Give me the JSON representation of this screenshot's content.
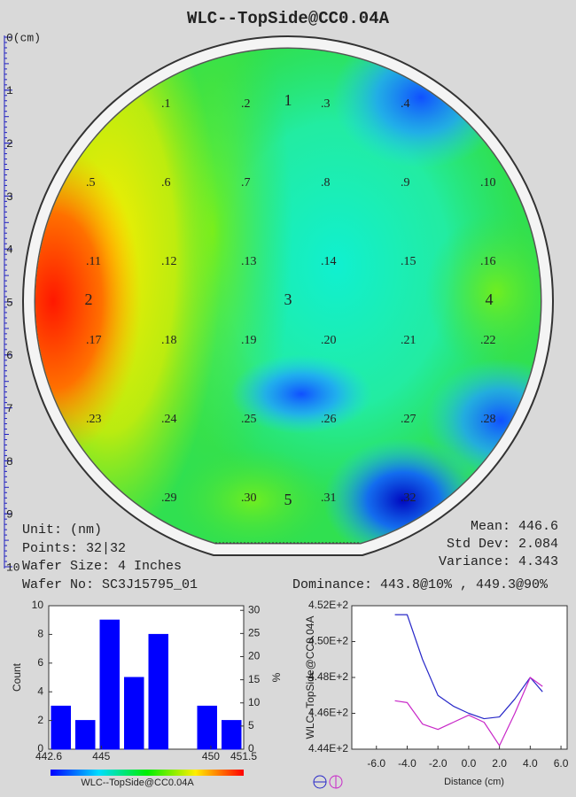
{
  "title": "WLC--TopSide@CC0.04A",
  "ruler": {
    "ylim": [
      0,
      10
    ],
    "yticks": [
      {
        "value": 0,
        "label": "0(cm)"
      },
      1,
      2,
      3,
      4,
      5,
      6,
      7,
      8,
      9,
      10
    ]
  },
  "map": {
    "points": [
      ".1",
      ".2",
      ".3",
      ".4",
      ".5",
      ".6",
      ".7",
      ".8",
      ".9",
      ".10",
      ".11",
      ".12",
      ".13",
      ".14",
      ".15",
      ".16",
      ".17",
      ".18",
      ".19",
      ".20",
      ".21",
      ".22",
      ".23",
      ".24",
      ".25",
      ".26",
      ".27",
      ".28",
      ".29",
      ".30",
      ".31",
      ".32"
    ],
    "zones": [
      "1",
      "2",
      "3",
      "4",
      "5"
    ]
  },
  "info": {
    "unit": "Unit: (nm)",
    "points": "Points: 32|32",
    "wafer_size": "Wafer Size: 4 Inches",
    "wafer_no": "Wafer No: SC3J15795_01",
    "mean": {
      "label": "Mean:",
      "value": 446.6
    },
    "std_dev": {
      "label": "Std Dev:",
      "value": 2.084
    },
    "variance": {
      "label": "Variance:",
      "value": 4.343
    },
    "dominance": "Dominance: 443.8@10% , 449.3@90%"
  },
  "histogram": {
    "type": "histogram",
    "bins": [
      442.6,
      443.7125,
      444.825,
      445.9375,
      447.05,
      448.1625,
      449.275,
      450.3875,
      451.5
    ],
    "values": [
      3,
      2,
      9,
      5,
      8,
      0,
      3,
      2
    ],
    "color": "#0000ff",
    "xlim": [
      442.6,
      451.5
    ],
    "xticks": [
      442.6,
      445,
      450,
      451.5
    ],
    "ylim": [
      0,
      10
    ],
    "yticks": [
      0,
      2,
      4,
      6,
      8,
      10
    ],
    "y_label": "Count",
    "y2lim": [
      0,
      31
    ],
    "y2ticks": [
      0,
      5,
      10,
      15,
      20,
      25,
      30
    ],
    "y2_label": "%",
    "colorbar_label": "WLC--TopSide@CC0.04A"
  },
  "profile": {
    "type": "line",
    "series": [
      {
        "color": "#2828c8",
        "x": [
          -4.8,
          -4.0,
          -3.0,
          -2.0,
          -1.0,
          0.0,
          1.0,
          2.0,
          3.0,
          4.0,
          4.8
        ],
        "values": [
          451.5,
          451.5,
          449.0,
          447.0,
          446.4,
          446.0,
          445.7,
          445.8,
          446.8,
          448.0,
          447.2
        ]
      },
      {
        "color": "#c828c8",
        "x": [
          -4.8,
          -4.0,
          -3.0,
          -2.0,
          -1.0,
          0.0,
          1.0,
          2.0,
          3.0,
          4.0,
          4.8
        ],
        "values": [
          446.7,
          446.6,
          445.4,
          445.1,
          445.5,
          445.9,
          445.5,
          444.2,
          446.0,
          448.0,
          447.5
        ]
      }
    ],
    "xlim": [
      -7.6,
      6.4
    ],
    "xticks": [
      {
        "value": -6,
        "label": "-6.0"
      },
      {
        "value": -4,
        "label": "-4.0"
      },
      {
        "value": -2,
        "label": "-2.0"
      },
      {
        "value": 0,
        "label": "0.0"
      },
      {
        "value": 2,
        "label": "2.0"
      },
      {
        "value": 4,
        "label": "4.0"
      },
      {
        "value": 6,
        "label": "6.0"
      }
    ],
    "ylim": [
      444,
      452
    ],
    "yticks": [
      {
        "value": 444,
        "label": "4.44E+2"
      },
      {
        "value": 446,
        "label": "4.46E+2"
      },
      {
        "value": 448,
        "label": "4.48E+2"
      },
      {
        "value": 450,
        "label": "4.50E+2"
      },
      {
        "value": 452,
        "label": "4.52E+2"
      }
    ],
    "x_label": "Distance (cm)",
    "y_label": "WLC--TopSide@CC0.04A"
  }
}
